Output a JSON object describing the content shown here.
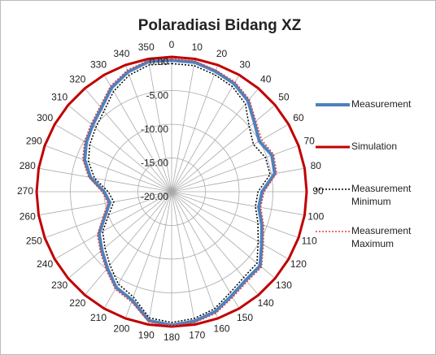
{
  "chart_data": {
    "type": "radar",
    "title": "Polaradiasi  Bidang XZ",
    "categories": [
      0,
      10,
      20,
      30,
      40,
      50,
      60,
      70,
      80,
      90,
      100,
      110,
      120,
      130,
      140,
      150,
      160,
      170,
      180,
      190,
      200,
      210,
      220,
      230,
      240,
      250,
      260,
      270,
      280,
      290,
      300,
      310,
      320,
      330,
      340,
      350
    ],
    "rlim": [
      -20,
      0
    ],
    "rticks": [
      {
        "value": 0,
        "label": "0.00"
      },
      {
        "value": -5,
        "label": "-5.00"
      },
      {
        "value": -10,
        "label": "-10.00"
      },
      {
        "value": -15,
        "label": "-15.00"
      },
      {
        "value": -20,
        "label": "-20.00"
      }
    ],
    "grid": true,
    "legend": "right",
    "series": [
      {
        "name": "Measurement",
        "color": "#4f81bd",
        "style": "solid",
        "width": 4,
        "values": [
          -0.5,
          -0.5,
          -1,
          -1.5,
          -2.4,
          -4,
          -5,
          -4.2,
          -4.5,
          -6.6,
          -6.9,
          -5.8,
          -4.6,
          -2.9,
          -2.9,
          -2.2,
          -1.1,
          -0.5,
          -0.2,
          -0.6,
          -2.9,
          -3.6,
          -5.2,
          -6.5,
          -7.6,
          -9.5,
          -10.7,
          -10,
          -7.8,
          -6.3,
          -5.4,
          -4.7,
          -3.8,
          -2.2,
          -1.1,
          -0.4
        ]
      },
      {
        "name": "Simulation",
        "color": "#c00000",
        "style": "solid",
        "width": 3,
        "values": [
          0,
          0,
          0,
          0,
          0,
          0,
          0,
          0,
          0,
          0,
          0,
          0,
          0,
          0,
          0,
          0,
          0,
          0,
          0,
          0,
          0,
          0,
          0,
          0,
          0,
          0,
          0,
          0,
          0,
          0,
          0,
          0,
          0,
          0,
          0,
          0
        ]
      },
      {
        "name": "Measurement Minimum",
        "color": "#000000",
        "style": "dotted",
        "width": 1.5,
        "values": [
          -1,
          -1,
          -1.5,
          -2,
          -3,
          -5,
          -6,
          -5.2,
          -5.2,
          -7.2,
          -7.4,
          -6.4,
          -5.2,
          -3.5,
          -3.4,
          -2.7,
          -1.5,
          -0.9,
          -0.6,
          -1,
          -3.4,
          -4.2,
          -5.8,
          -7.1,
          -8.2,
          -10.1,
          -11.3,
          -10.6,
          -8.4,
          -6.9,
          -6,
          -5.3,
          -4.4,
          -2.8,
          -1.6,
          -0.9
        ]
      },
      {
        "name": "Measurement Maximum",
        "color": "#e04040",
        "style": "dotted",
        "width": 1.5,
        "values": [
          -0.3,
          -0.3,
          -0.8,
          -1.2,
          -2.1,
          -3.7,
          -4.6,
          -3.9,
          -4.2,
          -6.3,
          -6.6,
          -5.5,
          -4.3,
          -2.6,
          -2.6,
          -1.9,
          -0.8,
          -0.3,
          -0.1,
          -0.4,
          -2.6,
          -3.3,
          -4.9,
          -6.2,
          -7.3,
          -9.2,
          -10.4,
          -9.7,
          -7.5,
          -6,
          -5.1,
          -4.4,
          -3.5,
          -1.9,
          -0.8,
          -0.2
        ]
      }
    ]
  }
}
